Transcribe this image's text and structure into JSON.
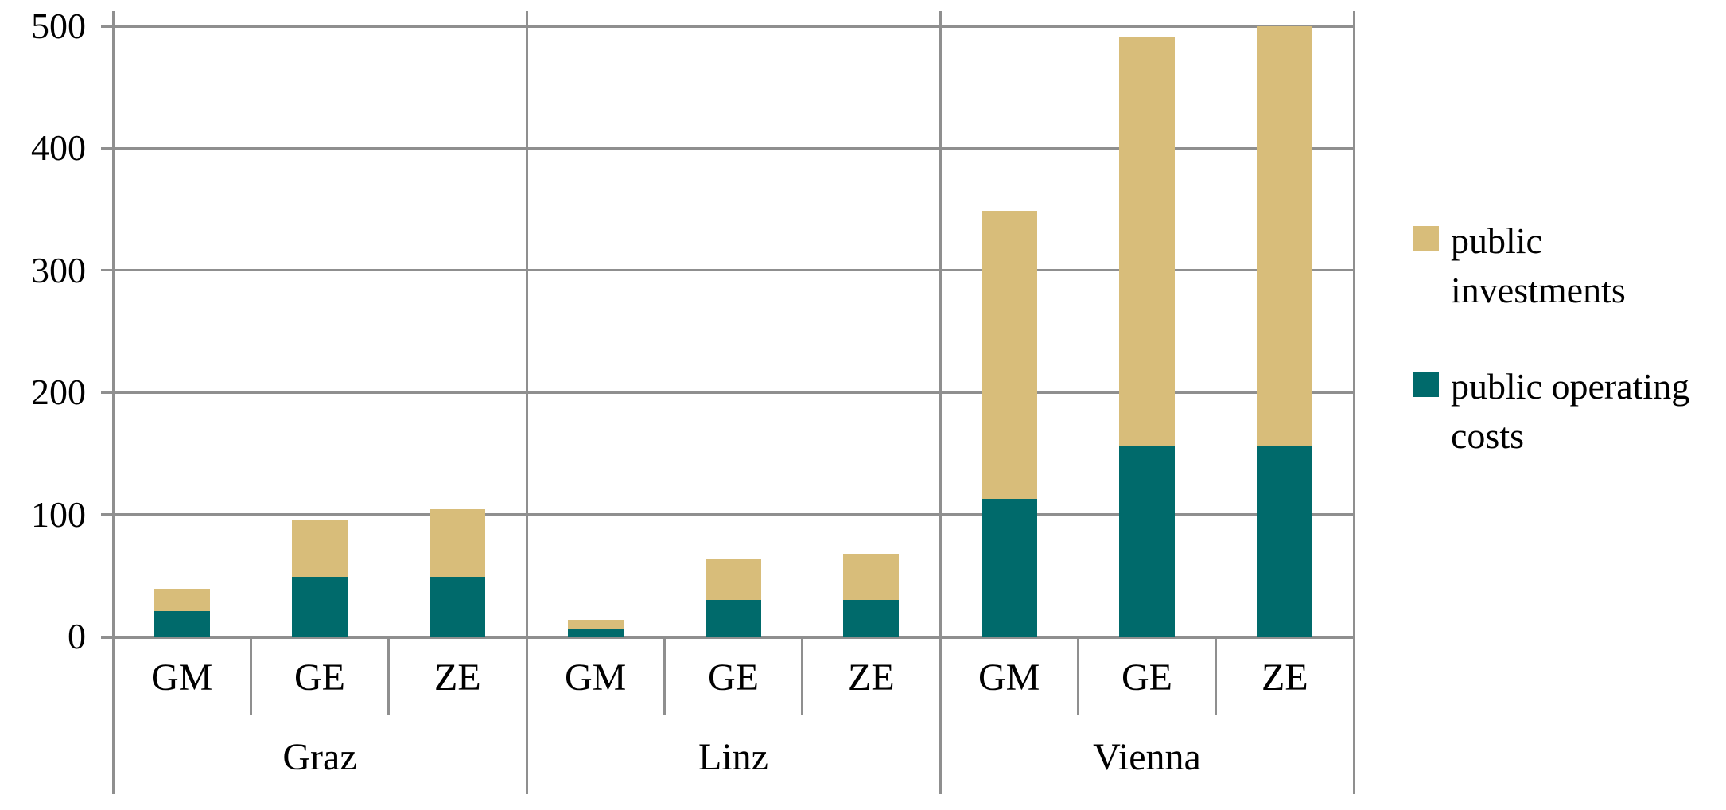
{
  "chart_data": {
    "type": "bar",
    "stacked": true,
    "title": "",
    "xlabel": "",
    "ylabel": "",
    "groups": [
      "Graz",
      "Linz",
      "Vienna"
    ],
    "subcategories": [
      "GM",
      "GE",
      "ZE"
    ],
    "series": [
      {
        "name": "public investments",
        "color": "#D8BD7A",
        "values": [
          [
            18,
            47,
            55
          ],
          [
            8,
            34,
            38
          ],
          [
            236,
            335,
            344
          ]
        ]
      },
      {
        "name": "public operating costs",
        "color": "#006A6B",
        "values": [
          [
            21,
            49,
            49
          ],
          [
            6,
            30,
            30
          ],
          [
            113,
            156,
            156
          ]
        ]
      }
    ],
    "stack_order_bottom_to_top": [
      "public operating costs",
      "public investments"
    ],
    "totals": [
      [
        39,
        96,
        104
      ],
      [
        14,
        64,
        68
      ],
      [
        349,
        491,
        500
      ]
    ],
    "ylim": [
      0,
      500
    ],
    "yticks": [
      500,
      400,
      300,
      200,
      100,
      0
    ],
    "grid": "horizontal",
    "legend_position": "right"
  },
  "legend": {
    "items": [
      {
        "label": "public investments",
        "color": "#D8BD7A"
      },
      {
        "label": "public operating costs",
        "color": "#006A6B"
      }
    ]
  },
  "colors": {
    "background": "#FFFFFF",
    "grid": "#8F8F8F",
    "text": "#000000",
    "bar_public_investments": "#D8BD7A",
    "bar_public_operating_costs": "#006A6B"
  }
}
